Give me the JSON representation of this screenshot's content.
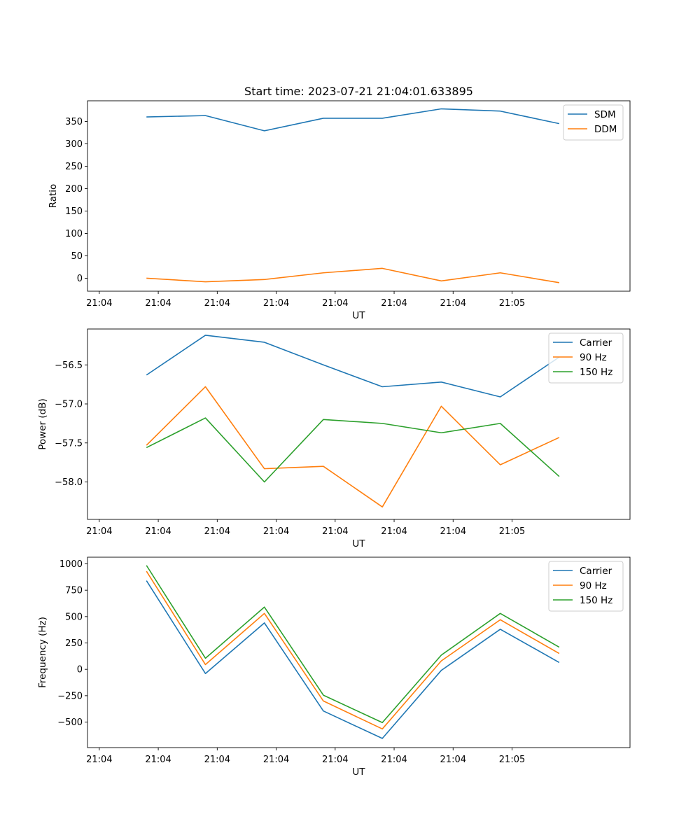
{
  "chart_data": [
    {
      "type": "line",
      "title": "Start time: 2023-07-21 21:04:01.633895",
      "xlabel": "UT",
      "ylabel": "Ratio",
      "xtick_labels": [
        "21:04",
        "21:04",
        "21:04",
        "21:04",
        "21:04",
        "21:04",
        "21:04",
        "21:05"
      ],
      "x": [
        1,
        2,
        3,
        4,
        5,
        6,
        7,
        8
      ],
      "xlim": [
        0,
        9.2
      ],
      "ylim": [
        -29,
        396
      ],
      "yticks": [
        0,
        50,
        100,
        150,
        200,
        250,
        300,
        350
      ],
      "legend_position": "top-right",
      "grid": false,
      "series": [
        {
          "name": "SDM",
          "color": "#1f77b4",
          "values": [
            360,
            363,
            329,
            357,
            357,
            378,
            373,
            345
          ]
        },
        {
          "name": "DDM",
          "color": "#ff7f0e",
          "values": [
            0,
            -8,
            -3,
            12,
            22,
            -6,
            12,
            -10
          ]
        }
      ]
    },
    {
      "type": "line",
      "title": "",
      "xlabel": "UT",
      "ylabel": "Power (dB)",
      "xtick_labels": [
        "21:04",
        "21:04",
        "21:04",
        "21:04",
        "21:04",
        "21:04",
        "21:04",
        "21:05"
      ],
      "x": [
        1,
        2,
        3,
        4,
        5,
        6,
        7,
        8
      ],
      "xlim": [
        0,
        9.2
      ],
      "ylim": [
        -58.48,
        -56.04
      ],
      "yticks": [
        -58.0,
        -57.5,
        -57.0,
        -56.5
      ],
      "ytick_labels": [
        "−58.0",
        "−57.5",
        "−57.0",
        "−56.5"
      ],
      "legend_position": "top-right",
      "grid": false,
      "series": [
        {
          "name": "Carrier",
          "color": "#1f77b4",
          "values": [
            -56.63,
            -56.12,
            -56.21,
            -56.5,
            -56.78,
            -56.72,
            -56.91,
            -56.4
          ]
        },
        {
          "name": "90 Hz",
          "color": "#ff7f0e",
          "values": [
            -57.53,
            -56.78,
            -57.83,
            -57.8,
            -58.32,
            -57.03,
            -57.78,
            -57.43
          ]
        },
        {
          "name": "150 Hz",
          "color": "#2ca02c",
          "values": [
            -57.56,
            -57.18,
            -58.0,
            -57.2,
            -57.25,
            -57.37,
            -57.25,
            -57.93
          ]
        }
      ]
    },
    {
      "type": "line",
      "title": "",
      "xlabel": "UT",
      "ylabel": "Frequency (Hz)",
      "xtick_labels": [
        "21:04",
        "21:04",
        "21:04",
        "21:04",
        "21:04",
        "21:04",
        "21:04",
        "21:05"
      ],
      "x": [
        1,
        2,
        3,
        4,
        5,
        6,
        7,
        8
      ],
      "xlim": [
        0,
        9.2
      ],
      "ylim": [
        -742,
        1063
      ],
      "yticks": [
        -500,
        -250,
        0,
        250,
        500,
        750,
        1000
      ],
      "ytick_labels": [
        "−500",
        "−250",
        "0",
        "250",
        "500",
        "750",
        "1000"
      ],
      "legend_position": "top-right",
      "grid": false,
      "series": [
        {
          "name": "Carrier",
          "color": "#1f77b4",
          "values": [
            840,
            -40,
            440,
            -395,
            -655,
            -10,
            380,
            65
          ]
        },
        {
          "name": "90 Hz",
          "color": "#ff7f0e",
          "values": [
            930,
            45,
            530,
            -300,
            -565,
            80,
            470,
            150
          ]
        },
        {
          "name": "150 Hz",
          "color": "#2ca02c",
          "values": [
            985,
            105,
            590,
            -245,
            -505,
            135,
            530,
            210
          ]
        }
      ]
    }
  ]
}
